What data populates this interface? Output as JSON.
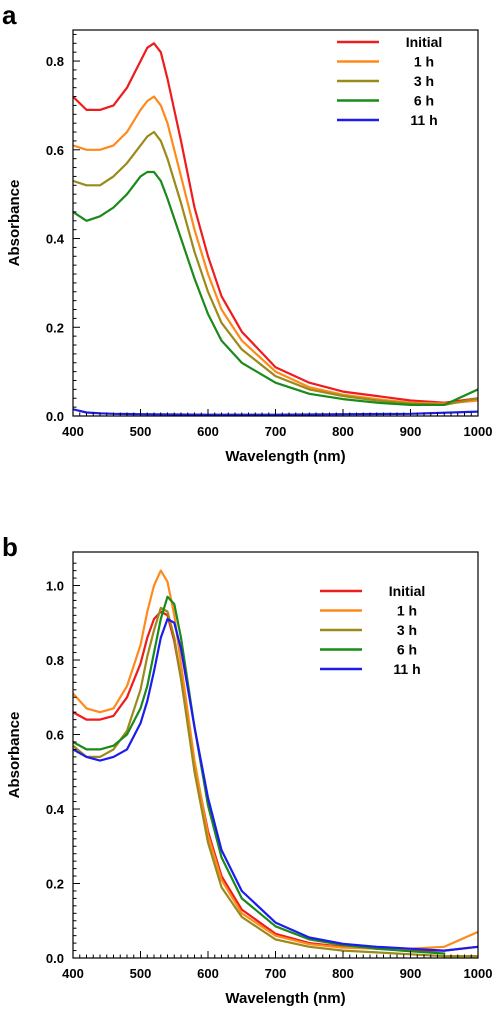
{
  "chart_data": [
    {
      "panel_label": "a",
      "type": "line",
      "xlabel": "Wavelength (nm)",
      "ylabel": "Absorbance",
      "xlim": [
        400,
        1000
      ],
      "ylim": [
        0,
        0.87
      ],
      "x_ticks": [
        400,
        500,
        600,
        700,
        800,
        900,
        1000
      ],
      "y_ticks": [
        0.0,
        0.2,
        0.4,
        0.6,
        0.8
      ],
      "y_tick_labels": [
        "0.0",
        "0.2",
        "0.4",
        "0.6",
        "0.8"
      ],
      "legend_position": "top-right",
      "grid": false,
      "series": [
        {
          "name": "Initial",
          "color": "#ee1c1c",
          "x": [
            400,
            420,
            440,
            460,
            480,
            500,
            510,
            520,
            530,
            540,
            560,
            580,
            600,
            620,
            650,
            700,
            750,
            800,
            850,
            900,
            950,
            1000
          ],
          "y": [
            0.72,
            0.69,
            0.69,
            0.7,
            0.74,
            0.8,
            0.83,
            0.84,
            0.82,
            0.76,
            0.62,
            0.47,
            0.36,
            0.27,
            0.19,
            0.11,
            0.075,
            0.055,
            0.045,
            0.035,
            0.03,
            0.04
          ]
        },
        {
          "name": "1 h",
          "color": "#ff8a1c",
          "x": [
            400,
            420,
            440,
            460,
            480,
            500,
            510,
            520,
            530,
            540,
            560,
            580,
            600,
            620,
            650,
            700,
            750,
            800,
            850,
            900,
            950,
            1000
          ],
          "y": [
            0.61,
            0.6,
            0.6,
            0.61,
            0.64,
            0.69,
            0.71,
            0.72,
            0.7,
            0.66,
            0.54,
            0.42,
            0.32,
            0.24,
            0.17,
            0.1,
            0.065,
            0.048,
            0.038,
            0.03,
            0.028,
            0.035
          ]
        },
        {
          "name": "3 h",
          "color": "#9a8a1a",
          "x": [
            400,
            420,
            440,
            460,
            480,
            500,
            510,
            520,
            530,
            540,
            560,
            580,
            600,
            620,
            650,
            700,
            750,
            800,
            850,
            900,
            950,
            1000
          ],
          "y": [
            0.53,
            0.52,
            0.52,
            0.54,
            0.57,
            0.61,
            0.63,
            0.64,
            0.62,
            0.58,
            0.48,
            0.37,
            0.28,
            0.21,
            0.15,
            0.09,
            0.06,
            0.045,
            0.035,
            0.028,
            0.025,
            0.04
          ]
        },
        {
          "name": "6 h",
          "color": "#1a8a1a",
          "x": [
            400,
            420,
            440,
            460,
            480,
            500,
            510,
            520,
            530,
            540,
            560,
            580,
            600,
            620,
            650,
            700,
            750,
            800,
            850,
            900,
            950,
            1000
          ],
          "y": [
            0.46,
            0.44,
            0.45,
            0.47,
            0.5,
            0.54,
            0.55,
            0.55,
            0.53,
            0.49,
            0.4,
            0.31,
            0.23,
            0.17,
            0.12,
            0.075,
            0.05,
            0.038,
            0.03,
            0.025,
            0.025,
            0.06
          ]
        },
        {
          "name": "11 h",
          "color": "#1c1cee",
          "x": [
            400,
            420,
            440,
            460,
            500,
            600,
            700,
            800,
            900,
            1000
          ],
          "y": [
            0.015,
            0.008,
            0.006,
            0.005,
            0.004,
            0.003,
            0.003,
            0.004,
            0.005,
            0.01
          ]
        }
      ]
    },
    {
      "panel_label": "b",
      "type": "line",
      "xlabel": "Wavelength (nm)",
      "ylabel": "Absorbance",
      "xlim": [
        400,
        1000
      ],
      "ylim": [
        0,
        1.09
      ],
      "x_ticks": [
        400,
        500,
        600,
        700,
        800,
        900,
        1000
      ],
      "y_ticks": [
        0.0,
        0.2,
        0.4,
        0.6,
        0.8,
        1.0
      ],
      "y_tick_labels": [
        "0.0",
        "0.2",
        "0.4",
        "0.6",
        "0.8",
        "1.0"
      ],
      "legend_position": "top-right",
      "grid": false,
      "series": [
        {
          "name": "Initial",
          "color": "#ee1c1c",
          "x": [
            400,
            420,
            440,
            460,
            480,
            500,
            510,
            520,
            530,
            540,
            550,
            560,
            580,
            600,
            620,
            650,
            700,
            750,
            800,
            850,
            900,
            950,
            1000
          ],
          "y": [
            0.66,
            0.64,
            0.64,
            0.65,
            0.7,
            0.79,
            0.86,
            0.91,
            0.93,
            0.92,
            0.85,
            0.75,
            0.52,
            0.34,
            0.22,
            0.13,
            0.065,
            0.04,
            0.03,
            0.025,
            0.02,
            0.02,
            0.03
          ]
        },
        {
          "name": "1 h",
          "color": "#ff8a1c",
          "x": [
            400,
            420,
            440,
            460,
            480,
            500,
            510,
            520,
            530,
            540,
            550,
            560,
            580,
            600,
            620,
            650,
            700,
            750,
            800,
            850,
            900,
            950,
            1000
          ],
          "y": [
            0.71,
            0.67,
            0.66,
            0.67,
            0.73,
            0.84,
            0.93,
            1.0,
            1.04,
            1.01,
            0.92,
            0.79,
            0.53,
            0.33,
            0.21,
            0.12,
            0.06,
            0.037,
            0.028,
            0.025,
            0.025,
            0.03,
            0.07
          ]
        },
        {
          "name": "3 h",
          "color": "#9a8a1a",
          "x": [
            400,
            420,
            440,
            460,
            480,
            500,
            510,
            520,
            530,
            540,
            550,
            560,
            580,
            600,
            620,
            650,
            700,
            750,
            800,
            850,
            900,
            950,
            1000
          ],
          "y": [
            0.57,
            0.54,
            0.54,
            0.56,
            0.61,
            0.72,
            0.81,
            0.88,
            0.94,
            0.93,
            0.86,
            0.75,
            0.5,
            0.31,
            0.19,
            0.11,
            0.05,
            0.03,
            0.02,
            0.015,
            0.01,
            0.005,
            0.005
          ]
        },
        {
          "name": "6 h",
          "color": "#1a8a1a",
          "x": [
            400,
            420,
            440,
            460,
            480,
            500,
            510,
            520,
            530,
            540,
            550,
            560,
            580,
            600,
            620,
            650,
            700,
            750,
            800,
            850,
            900,
            950
          ],
          "y": [
            0.58,
            0.56,
            0.56,
            0.57,
            0.6,
            0.67,
            0.73,
            0.82,
            0.91,
            0.97,
            0.95,
            0.86,
            0.62,
            0.41,
            0.27,
            0.16,
            0.085,
            0.05,
            0.035,
            0.025,
            0.018,
            0.012
          ]
        },
        {
          "name": "11 h",
          "color": "#1c1cee",
          "x": [
            400,
            420,
            440,
            460,
            480,
            500,
            510,
            520,
            530,
            540,
            550,
            560,
            580,
            600,
            620,
            650,
            700,
            750,
            800,
            850,
            900,
            950,
            1000
          ],
          "y": [
            0.56,
            0.54,
            0.53,
            0.54,
            0.56,
            0.63,
            0.69,
            0.77,
            0.86,
            0.91,
            0.9,
            0.83,
            0.62,
            0.43,
            0.29,
            0.18,
            0.095,
            0.055,
            0.038,
            0.03,
            0.025,
            0.02,
            0.03
          ]
        }
      ]
    }
  ]
}
